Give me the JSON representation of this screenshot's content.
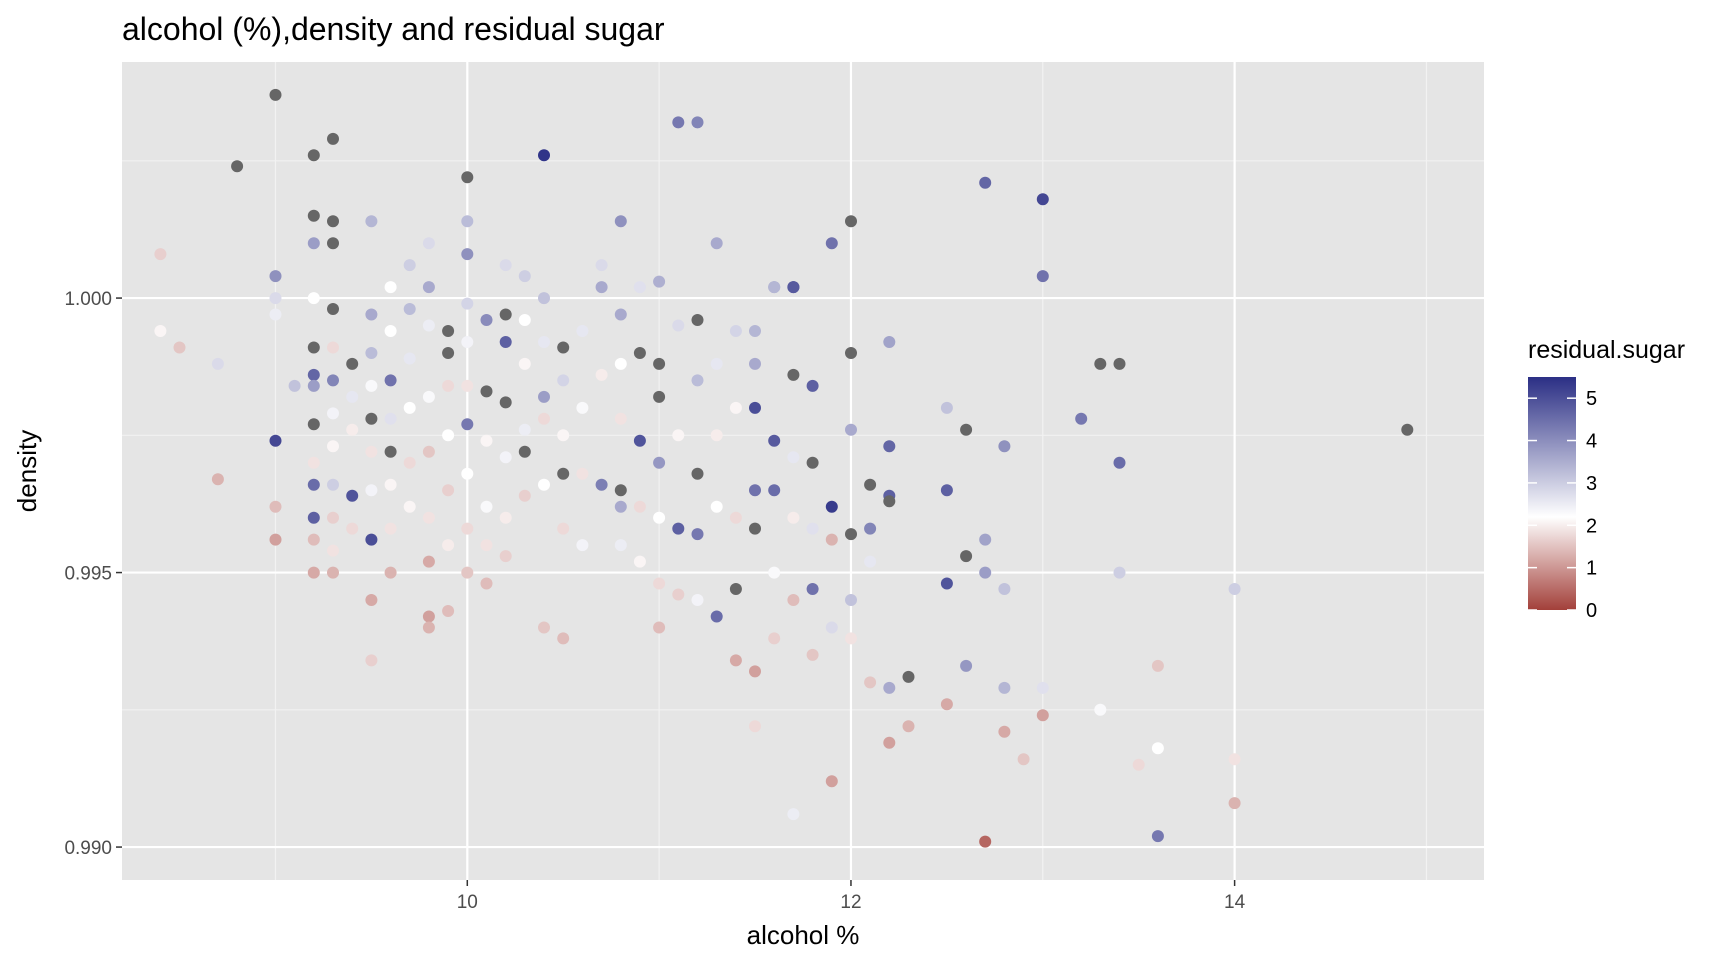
{
  "chart_data": {
    "type": "scatter",
    "title": "alcohol (%),density and residual sugar",
    "xlabel": "alcohol %",
    "ylabel": "density",
    "xlim": [
      8.2,
      15.3
    ],
    "ylim": [
      0.9894,
      1.0043
    ],
    "x_ticks": [
      10,
      12,
      14
    ],
    "y_ticks": [
      0.99,
      0.995,
      1.0
    ],
    "y_tick_labels": [
      "0.990",
      "0.995",
      "1.000"
    ],
    "grid": true,
    "legend": {
      "title": "residual.sugar",
      "placement": "right",
      "ticks": [
        0,
        1,
        2,
        3,
        4,
        5
      ],
      "colors": {
        "low": "#a3403a",
        "mid": "#ffffff",
        "high": "#2b2f85",
        "midpoint": 2,
        "na": "#666666"
      }
    },
    "colors": {
      "panel": "#e5e5e5",
      "grid_major": "#ffffff",
      "grid_minor": "#f2f2f2"
    },
    "points": [
      [
        9.0,
        1.0037,
        null
      ],
      [
        9.3,
        1.0029,
        null
      ],
      [
        8.8,
        1.0024,
        null
      ],
      [
        9.2,
        1.0026,
        null
      ],
      [
        10.0,
        1.0022,
        null
      ],
      [
        10.4,
        1.0026,
        5.3
      ],
      [
        11.1,
        1.0032,
        4.2
      ],
      [
        11.2,
        1.0032,
        4.0
      ],
      [
        12.7,
        1.0021,
        4.5
      ],
      [
        13.0,
        1.0018,
        5.0
      ],
      [
        9.2,
        1.0015,
        null
      ],
      [
        9.3,
        1.0014,
        null
      ],
      [
        9.2,
        1.001,
        3.6
      ],
      [
        9.3,
        1.001,
        null
      ],
      [
        9.5,
        1.0014,
        3.2
      ],
      [
        10.0,
        1.0014,
        3.1
      ],
      [
        10.8,
        1.0014,
        3.8
      ],
      [
        11.3,
        1.001,
        3.4
      ],
      [
        11.9,
        1.001,
        4.3
      ],
      [
        12.0,
        1.0014,
        null
      ],
      [
        13.0,
        1.0004,
        4.3
      ],
      [
        11.7,
        1.0002,
        4.7
      ],
      [
        11.6,
        1.0002,
        3.4
      ],
      [
        8.4,
        1.0008,
        1.5
      ],
      [
        8.4,
        0.9994,
        1.9
      ],
      [
        8.5,
        0.9991,
        1.4
      ],
      [
        8.7,
        0.9967,
        1.2
      ],
      [
        8.7,
        0.9988,
        2.6
      ],
      [
        9.0,
        1.0004,
        3.8
      ],
      [
        9.0,
        1.0,
        2.6
      ],
      [
        9.2,
        1.0,
        2.0
      ],
      [
        9.0,
        0.9997,
        2.3
      ],
      [
        9.0,
        0.9974,
        5.0
      ],
      [
        9.0,
        0.9962,
        1.3
      ],
      [
        9.0,
        0.9956,
        1.0
      ],
      [
        9.2,
        0.9991,
        null
      ],
      [
        9.1,
        0.9984,
        3.0
      ],
      [
        9.2,
        0.9986,
        4.5
      ],
      [
        9.2,
        0.9984,
        3.6
      ],
      [
        9.2,
        0.9977,
        null
      ],
      [
        9.2,
        0.997,
        1.7
      ],
      [
        9.2,
        0.9966,
        4.4
      ],
      [
        9.2,
        0.996,
        4.6
      ],
      [
        9.2,
        0.9956,
        1.3
      ],
      [
        9.2,
        0.995,
        1.1
      ],
      [
        9.3,
        0.9998,
        null
      ],
      [
        9.3,
        0.9991,
        1.6
      ],
      [
        9.3,
        0.9985,
        4.0
      ],
      [
        9.3,
        0.9979,
        2.2
      ],
      [
        9.3,
        0.9973,
        1.9
      ],
      [
        9.3,
        0.9966,
        2.8
      ],
      [
        9.3,
        0.996,
        1.5
      ],
      [
        9.3,
        0.9954,
        1.7
      ],
      [
        9.3,
        0.995,
        1.2
      ],
      [
        9.4,
        0.9988,
        null
      ],
      [
        9.4,
        0.9982,
        2.4
      ],
      [
        9.4,
        0.9976,
        1.8
      ],
      [
        9.4,
        0.9964,
        4.8
      ],
      [
        9.4,
        0.9958,
        1.6
      ],
      [
        9.5,
        0.9997,
        3.4
      ],
      [
        9.5,
        0.999,
        3.1
      ],
      [
        9.5,
        0.9984,
        2.1
      ],
      [
        9.5,
        0.9978,
        null
      ],
      [
        9.5,
        0.9972,
        1.7
      ],
      [
        9.5,
        0.9965,
        2.2
      ],
      [
        9.5,
        0.9956,
        4.9
      ],
      [
        9.5,
        0.9945,
        1.1
      ],
      [
        9.5,
        0.9934,
        1.5
      ],
      [
        9.6,
        1.0002,
        2.0
      ],
      [
        9.6,
        0.9994,
        2.0
      ],
      [
        9.6,
        0.9985,
        4.3
      ],
      [
        9.6,
        0.9978,
        2.5
      ],
      [
        9.6,
        0.9972,
        null
      ],
      [
        9.6,
        0.9966,
        1.9
      ],
      [
        9.6,
        0.9958,
        1.7
      ],
      [
        9.6,
        0.995,
        1.2
      ],
      [
        9.7,
        1.0006,
        2.8
      ],
      [
        9.7,
        0.9998,
        3.1
      ],
      [
        9.7,
        0.9989,
        2.4
      ],
      [
        9.7,
        0.998,
        2.0
      ],
      [
        9.7,
        0.997,
        1.6
      ],
      [
        9.7,
        0.9962,
        1.9
      ],
      [
        9.8,
        1.001,
        2.6
      ],
      [
        9.8,
        1.0002,
        3.4
      ],
      [
        9.8,
        0.9995,
        2.3
      ],
      [
        9.8,
        0.9982,
        2.1
      ],
      [
        9.8,
        0.9972,
        1.4
      ],
      [
        9.8,
        0.996,
        1.7
      ],
      [
        9.8,
        0.9952,
        1.1
      ],
      [
        9.8,
        0.9942,
        1.0
      ],
      [
        9.8,
        0.994,
        1.2
      ],
      [
        9.9,
        0.9994,
        null
      ],
      [
        9.9,
        0.999,
        null
      ],
      [
        9.9,
        0.9984,
        1.6
      ],
      [
        9.9,
        0.9975,
        2.0
      ],
      [
        9.9,
        0.9965,
        1.5
      ],
      [
        9.9,
        0.9955,
        1.8
      ],
      [
        9.9,
        0.9943,
        1.3
      ],
      [
        10.0,
        1.0008,
        3.8
      ],
      [
        10.0,
        0.9999,
        2.7
      ],
      [
        10.0,
        0.9992,
        2.2
      ],
      [
        10.0,
        0.9984,
        1.7
      ],
      [
        10.0,
        0.9977,
        4.2
      ],
      [
        10.0,
        0.9968,
        2.0
      ],
      [
        10.0,
        0.9958,
        1.6
      ],
      [
        10.0,
        0.995,
        1.4
      ],
      [
        10.1,
        0.9996,
        3.9
      ],
      [
        10.1,
        0.9983,
        null
      ],
      [
        10.1,
        0.9974,
        1.9
      ],
      [
        10.1,
        0.9962,
        2.1
      ],
      [
        10.1,
        0.9955,
        1.7
      ],
      [
        10.1,
        0.9948,
        1.3
      ],
      [
        10.2,
        1.0006,
        2.6
      ],
      [
        10.2,
        0.9997,
        null
      ],
      [
        10.2,
        0.9992,
        4.6
      ],
      [
        10.2,
        0.9981,
        null
      ],
      [
        10.2,
        0.9971,
        2.2
      ],
      [
        10.2,
        0.996,
        1.8
      ],
      [
        10.2,
        0.9953,
        1.5
      ],
      [
        10.3,
        1.0004,
        2.8
      ],
      [
        10.3,
        0.9996,
        2.0
      ],
      [
        10.3,
        0.9988,
        1.9
      ],
      [
        10.3,
        0.9976,
        2.3
      ],
      [
        10.3,
        0.9972,
        null
      ],
      [
        10.3,
        0.9964,
        1.5
      ],
      [
        10.4,
        1.0,
        3.0
      ],
      [
        10.4,
        0.9992,
        2.4
      ],
      [
        10.4,
        0.9982,
        3.6
      ],
      [
        10.4,
        0.9978,
        1.6
      ],
      [
        10.4,
        0.9966,
        2.0
      ],
      [
        10.4,
        0.994,
        1.4
      ],
      [
        10.5,
        0.9991,
        null
      ],
      [
        10.5,
        0.9985,
        2.7
      ],
      [
        10.5,
        0.9975,
        1.9
      ],
      [
        10.5,
        0.9968,
        null
      ],
      [
        10.5,
        0.9958,
        1.6
      ],
      [
        10.5,
        0.9938,
        1.3
      ],
      [
        10.6,
        0.9994,
        2.4
      ],
      [
        10.6,
        0.998,
        2.1
      ],
      [
        10.6,
        0.9968,
        1.7
      ],
      [
        10.6,
        0.9955,
        2.2
      ],
      [
        10.7,
        1.0006,
        2.6
      ],
      [
        10.7,
        1.0002,
        3.4
      ],
      [
        10.7,
        0.9986,
        1.8
      ],
      [
        10.7,
        0.9966,
        4.1
      ],
      [
        10.8,
        0.9997,
        3.4
      ],
      [
        10.8,
        0.9988,
        2.0
      ],
      [
        10.8,
        0.9978,
        1.7
      ],
      [
        10.8,
        0.9965,
        null
      ],
      [
        10.8,
        0.9962,
        3.4
      ],
      [
        10.8,
        0.9955,
        2.3
      ],
      [
        10.9,
        1.0002,
        2.5
      ],
      [
        10.9,
        0.999,
        null
      ],
      [
        10.9,
        0.9974,
        4.8
      ],
      [
        10.9,
        0.9962,
        1.6
      ],
      [
        10.9,
        0.9952,
        1.9
      ],
      [
        11.0,
        1.0003,
        3.3
      ],
      [
        11.0,
        0.9988,
        null
      ],
      [
        11.0,
        0.9982,
        null
      ],
      [
        11.0,
        0.997,
        3.7
      ],
      [
        11.0,
        0.996,
        2.0
      ],
      [
        11.0,
        0.9948,
        1.6
      ],
      [
        11.0,
        0.994,
        1.3
      ],
      [
        11.1,
        0.9995,
        2.6
      ],
      [
        11.1,
        0.9975,
        1.9
      ],
      [
        11.1,
        0.9958,
        4.6
      ],
      [
        11.1,
        0.9946,
        1.5
      ],
      [
        11.2,
        0.9996,
        null
      ],
      [
        11.2,
        0.9985,
        3.1
      ],
      [
        11.2,
        0.9968,
        null
      ],
      [
        11.2,
        0.9957,
        4.2
      ],
      [
        11.2,
        0.9945,
        2.2
      ],
      [
        11.3,
        0.9988,
        2.4
      ],
      [
        11.3,
        0.9975,
        1.8
      ],
      [
        11.3,
        0.9962,
        2.0
      ],
      [
        11.3,
        0.9942,
        4.4
      ],
      [
        11.4,
        0.9994,
        2.7
      ],
      [
        11.4,
        0.998,
        1.9
      ],
      [
        11.4,
        0.996,
        1.6
      ],
      [
        11.4,
        0.9947,
        null
      ],
      [
        11.4,
        0.9934,
        1.1
      ],
      [
        11.5,
        0.9994,
        3.2
      ],
      [
        11.5,
        0.9988,
        3.4
      ],
      [
        11.5,
        0.998,
        4.9
      ],
      [
        11.5,
        0.9965,
        4.3
      ],
      [
        11.5,
        0.9958,
        null
      ],
      [
        11.5,
        0.9932,
        1.0
      ],
      [
        11.5,
        0.9922,
        1.6
      ],
      [
        11.6,
        1.0002,
        3.2
      ],
      [
        11.6,
        0.9974,
        4.7
      ],
      [
        11.6,
        0.9965,
        4.4
      ],
      [
        11.6,
        0.995,
        2.1
      ],
      [
        11.6,
        0.9938,
        1.5
      ],
      [
        11.7,
        1.0002,
        4.7
      ],
      [
        11.7,
        0.9986,
        null
      ],
      [
        11.7,
        0.9971,
        2.4
      ],
      [
        11.7,
        0.996,
        1.8
      ],
      [
        11.7,
        0.9945,
        1.3
      ],
      [
        11.7,
        0.9906,
        2.3
      ],
      [
        11.8,
        0.9984,
        4.6
      ],
      [
        11.8,
        0.997,
        null
      ],
      [
        11.8,
        0.9958,
        2.5
      ],
      [
        11.8,
        0.9947,
        4.3
      ],
      [
        11.8,
        0.9935,
        1.4
      ],
      [
        11.9,
        0.9962,
        5.2
      ],
      [
        11.9,
        0.9956,
        1.2
      ],
      [
        11.9,
        0.994,
        2.6
      ],
      [
        11.9,
        0.9912,
        1.0
      ],
      [
        12.0,
        0.999,
        null
      ],
      [
        12.0,
        0.9976,
        3.4
      ],
      [
        12.0,
        0.9957,
        null
      ],
      [
        12.0,
        0.9945,
        3.0
      ],
      [
        12.0,
        0.9938,
        1.7
      ],
      [
        12.1,
        0.9966,
        null
      ],
      [
        12.1,
        0.9958,
        4.0
      ],
      [
        12.1,
        0.9952,
        2.4
      ],
      [
        12.1,
        0.993,
        1.4
      ],
      [
        12.2,
        0.9992,
        3.5
      ],
      [
        12.2,
        0.9973,
        4.5
      ],
      [
        12.2,
        0.9964,
        4.6
      ],
      [
        12.2,
        0.9963,
        null
      ],
      [
        12.2,
        0.9929,
        3.4
      ],
      [
        12.2,
        0.9919,
        1.0
      ],
      [
        12.3,
        0.9931,
        null
      ],
      [
        12.3,
        0.9922,
        1.2
      ],
      [
        12.5,
        0.998,
        3.0
      ],
      [
        12.5,
        0.9965,
        4.6
      ],
      [
        12.5,
        0.9948,
        4.8
      ],
      [
        12.5,
        0.9926,
        1.1
      ],
      [
        12.6,
        0.9976,
        null
      ],
      [
        12.6,
        0.9953,
        null
      ],
      [
        12.6,
        0.9933,
        3.7
      ],
      [
        12.7,
        0.9956,
        3.5
      ],
      [
        12.7,
        0.995,
        3.6
      ],
      [
        12.7,
        0.9901,
        0.4
      ],
      [
        12.8,
        0.9973,
        3.8
      ],
      [
        12.8,
        0.9947,
        3.0
      ],
      [
        12.8,
        0.9929,
        3.2
      ],
      [
        12.8,
        0.9921,
        1.1
      ],
      [
        12.9,
        0.9916,
        1.4
      ],
      [
        13.0,
        0.9929,
        2.5
      ],
      [
        13.0,
        0.9924,
        1.0
      ],
      [
        13.2,
        0.9978,
        4.2
      ],
      [
        13.3,
        0.9988,
        null
      ],
      [
        13.3,
        0.9925,
        2.1
      ],
      [
        13.4,
        0.9988,
        null
      ],
      [
        13.4,
        0.997,
        4.4
      ],
      [
        13.4,
        0.995,
        2.8
      ],
      [
        13.5,
        0.9915,
        1.6
      ],
      [
        13.6,
        0.9918,
        2.0
      ],
      [
        13.6,
        0.9902,
        4.2
      ],
      [
        13.6,
        0.9933,
        1.4
      ],
      [
        14.0,
        0.9947,
        2.8
      ],
      [
        14.0,
        0.9916,
        1.7
      ],
      [
        14.0,
        0.9908,
        1.2
      ],
      [
        14.9,
        0.9976,
        null
      ]
    ]
  }
}
